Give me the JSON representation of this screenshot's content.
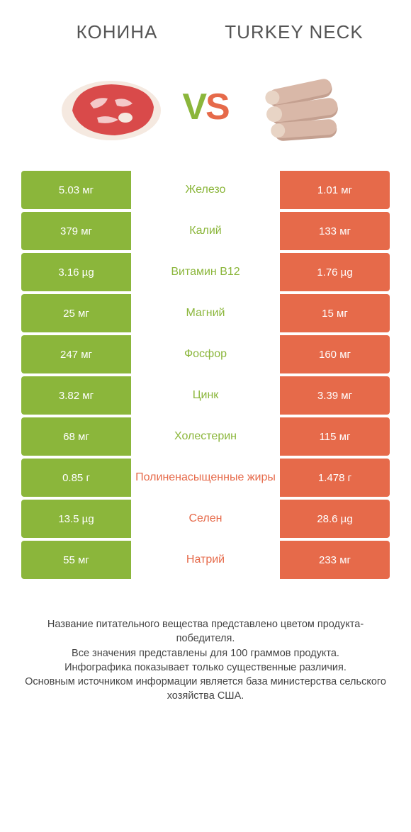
{
  "header": {
    "left_title": "КОНИНА",
    "right_title": "TURKEY NECK",
    "vs_v": "V",
    "vs_s": "S"
  },
  "colors": {
    "green": "#8bb63b",
    "orange": "#e66a4a",
    "background": "#ffffff",
    "text": "#444444"
  },
  "table": {
    "rows": [
      {
        "left": "5.03 мг",
        "label": "Железо",
        "right": "1.01 мг",
        "winner": "left"
      },
      {
        "left": "379 мг",
        "label": "Калий",
        "right": "133 мг",
        "winner": "left"
      },
      {
        "left": "3.16 µg",
        "label": "Витамин B12",
        "right": "1.76 µg",
        "winner": "left"
      },
      {
        "left": "25 мг",
        "label": "Магний",
        "right": "15 мг",
        "winner": "left"
      },
      {
        "left": "247 мг",
        "label": "Фосфор",
        "right": "160 мг",
        "winner": "left"
      },
      {
        "left": "3.82 мг",
        "label": "Цинк",
        "right": "3.39 мг",
        "winner": "left"
      },
      {
        "left": "68 мг",
        "label": "Холестерин",
        "right": "115 мг",
        "winner": "left"
      },
      {
        "left": "0.85 г",
        "label": "Полиненасыщенные жиры",
        "right": "1.478 г",
        "winner": "right"
      },
      {
        "left": "13.5 µg",
        "label": "Селен",
        "right": "28.6 µg",
        "winner": "right"
      },
      {
        "left": "55 мг",
        "label": "Натрий",
        "right": "233 мг",
        "winner": "right"
      }
    ]
  },
  "footer": {
    "line1": "Название питательного вещества представлено цветом продукта-победителя.",
    "line2": "Все значения представлены для 100 граммов продукта.",
    "line3": "Инфографика показывает только существенные различия.",
    "line4": "Основным источником информации является база министерства сельского хозяйства США."
  }
}
